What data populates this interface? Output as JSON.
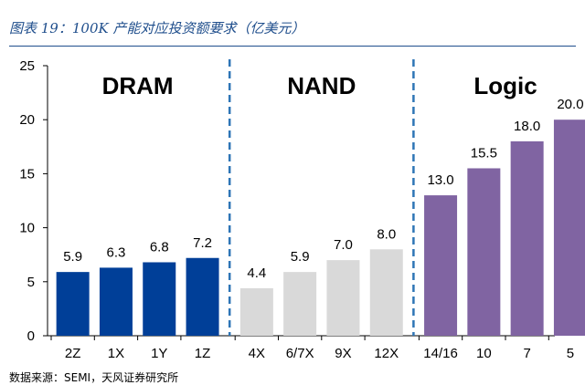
{
  "figure_title": "图表 19：100K 产能对应投资额要求（亿美元）",
  "footer_text": "数据来源：SEMI，天风证券研究所",
  "colors": {
    "dram": "#003f98",
    "nand": "#d9d9d9",
    "logic": "#8064a2",
    "divider": "#2e75b6",
    "axis": "#000000",
    "title": "#1f4e8c"
  },
  "chart_data": {
    "type": "bar",
    "title": "",
    "xlabel": "",
    "ylabel": "",
    "ylim": [
      0,
      25
    ],
    "yticks": [
      0,
      5,
      10,
      15,
      20,
      25
    ],
    "grid": false,
    "legend": "none",
    "groups": [
      {
        "name": "DRAM",
        "color_key": "dram",
        "categories": [
          "2Z",
          "1X",
          "1Y",
          "1Z"
        ],
        "values": [
          5.9,
          6.3,
          6.8,
          7.2
        ],
        "value_labels": [
          "5.9",
          "6.3",
          "6.8",
          "7.2"
        ]
      },
      {
        "name": "NAND",
        "color_key": "nand",
        "categories": [
          "4X",
          "6/7X",
          "9X",
          "12X"
        ],
        "values": [
          4.4,
          5.9,
          7.0,
          8.0
        ],
        "value_labels": [
          "4.4",
          "5.9",
          "7.0",
          "8.0"
        ]
      },
      {
        "name": "Logic",
        "color_key": "logic",
        "categories": [
          "14/16",
          "10",
          "7",
          "5"
        ],
        "values": [
          13.0,
          15.5,
          18.0,
          20.0
        ],
        "value_labels": [
          "13.0",
          "15.5",
          "18.0",
          "20.0"
        ]
      }
    ]
  }
}
